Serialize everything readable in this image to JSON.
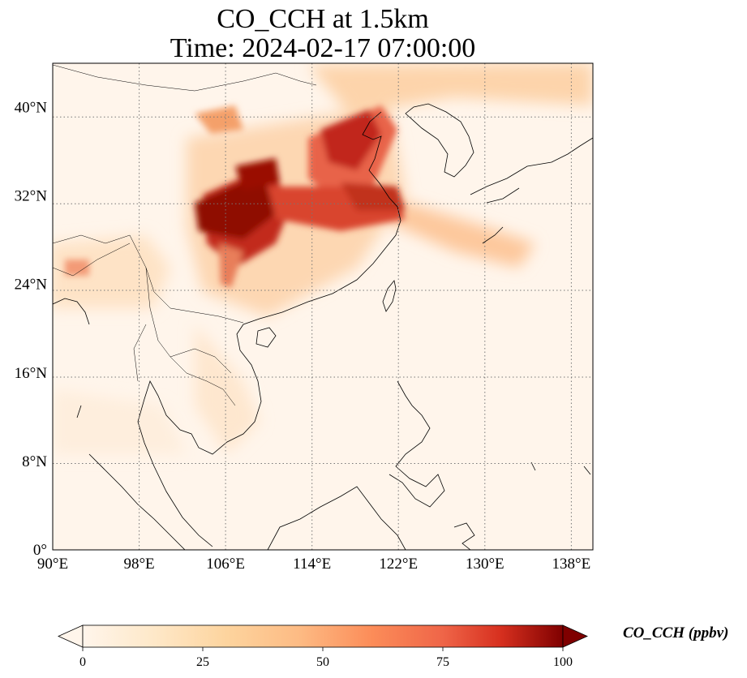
{
  "figure": {
    "title_line1": "CO_CCH at 1.5km",
    "title_line2": "Time: 2024-02-17 07:00:00"
  },
  "map": {
    "projection": "PlateCarree",
    "lon_range": [
      90,
      140
    ],
    "lat_range": [
      0,
      44
    ],
    "gridlines": "dotted",
    "lon_ticks": [
      {
        "value": 90,
        "label": "90°E"
      },
      {
        "value": 98,
        "label": "98°E"
      },
      {
        "value": 106,
        "label": "106°E"
      },
      {
        "value": 114,
        "label": "114°E"
      },
      {
        "value": 122,
        "label": "122°E"
      },
      {
        "value": 130,
        "label": "130°E"
      },
      {
        "value": 138,
        "label": "138°E"
      }
    ],
    "lat_ticks": [
      {
        "value": 0,
        "label": "0°"
      },
      {
        "value": 8,
        "label": "8°N"
      },
      {
        "value": 16,
        "label": "16°N"
      },
      {
        "value": 24,
        "label": "24°N"
      },
      {
        "value": 32,
        "label": "32°N"
      },
      {
        "value": 40,
        "label": "40°N"
      }
    ],
    "field_colors": [
      "#fff5eb",
      "#fdd9b2",
      "#fc9a5b",
      "#e34a33",
      "#b30000",
      "#7f0000"
    ]
  },
  "colorbar": {
    "label": "CO_CCH (ppbv)",
    "range": [
      0,
      100
    ],
    "extend": "both",
    "colormap": "OrRd",
    "ticks": [
      {
        "value": 0,
        "label": "0"
      },
      {
        "value": 25,
        "label": "25"
      },
      {
        "value": 50,
        "label": "50"
      },
      {
        "value": 75,
        "label": "75"
      },
      {
        "value": 100,
        "label": "100"
      }
    ]
  }
}
